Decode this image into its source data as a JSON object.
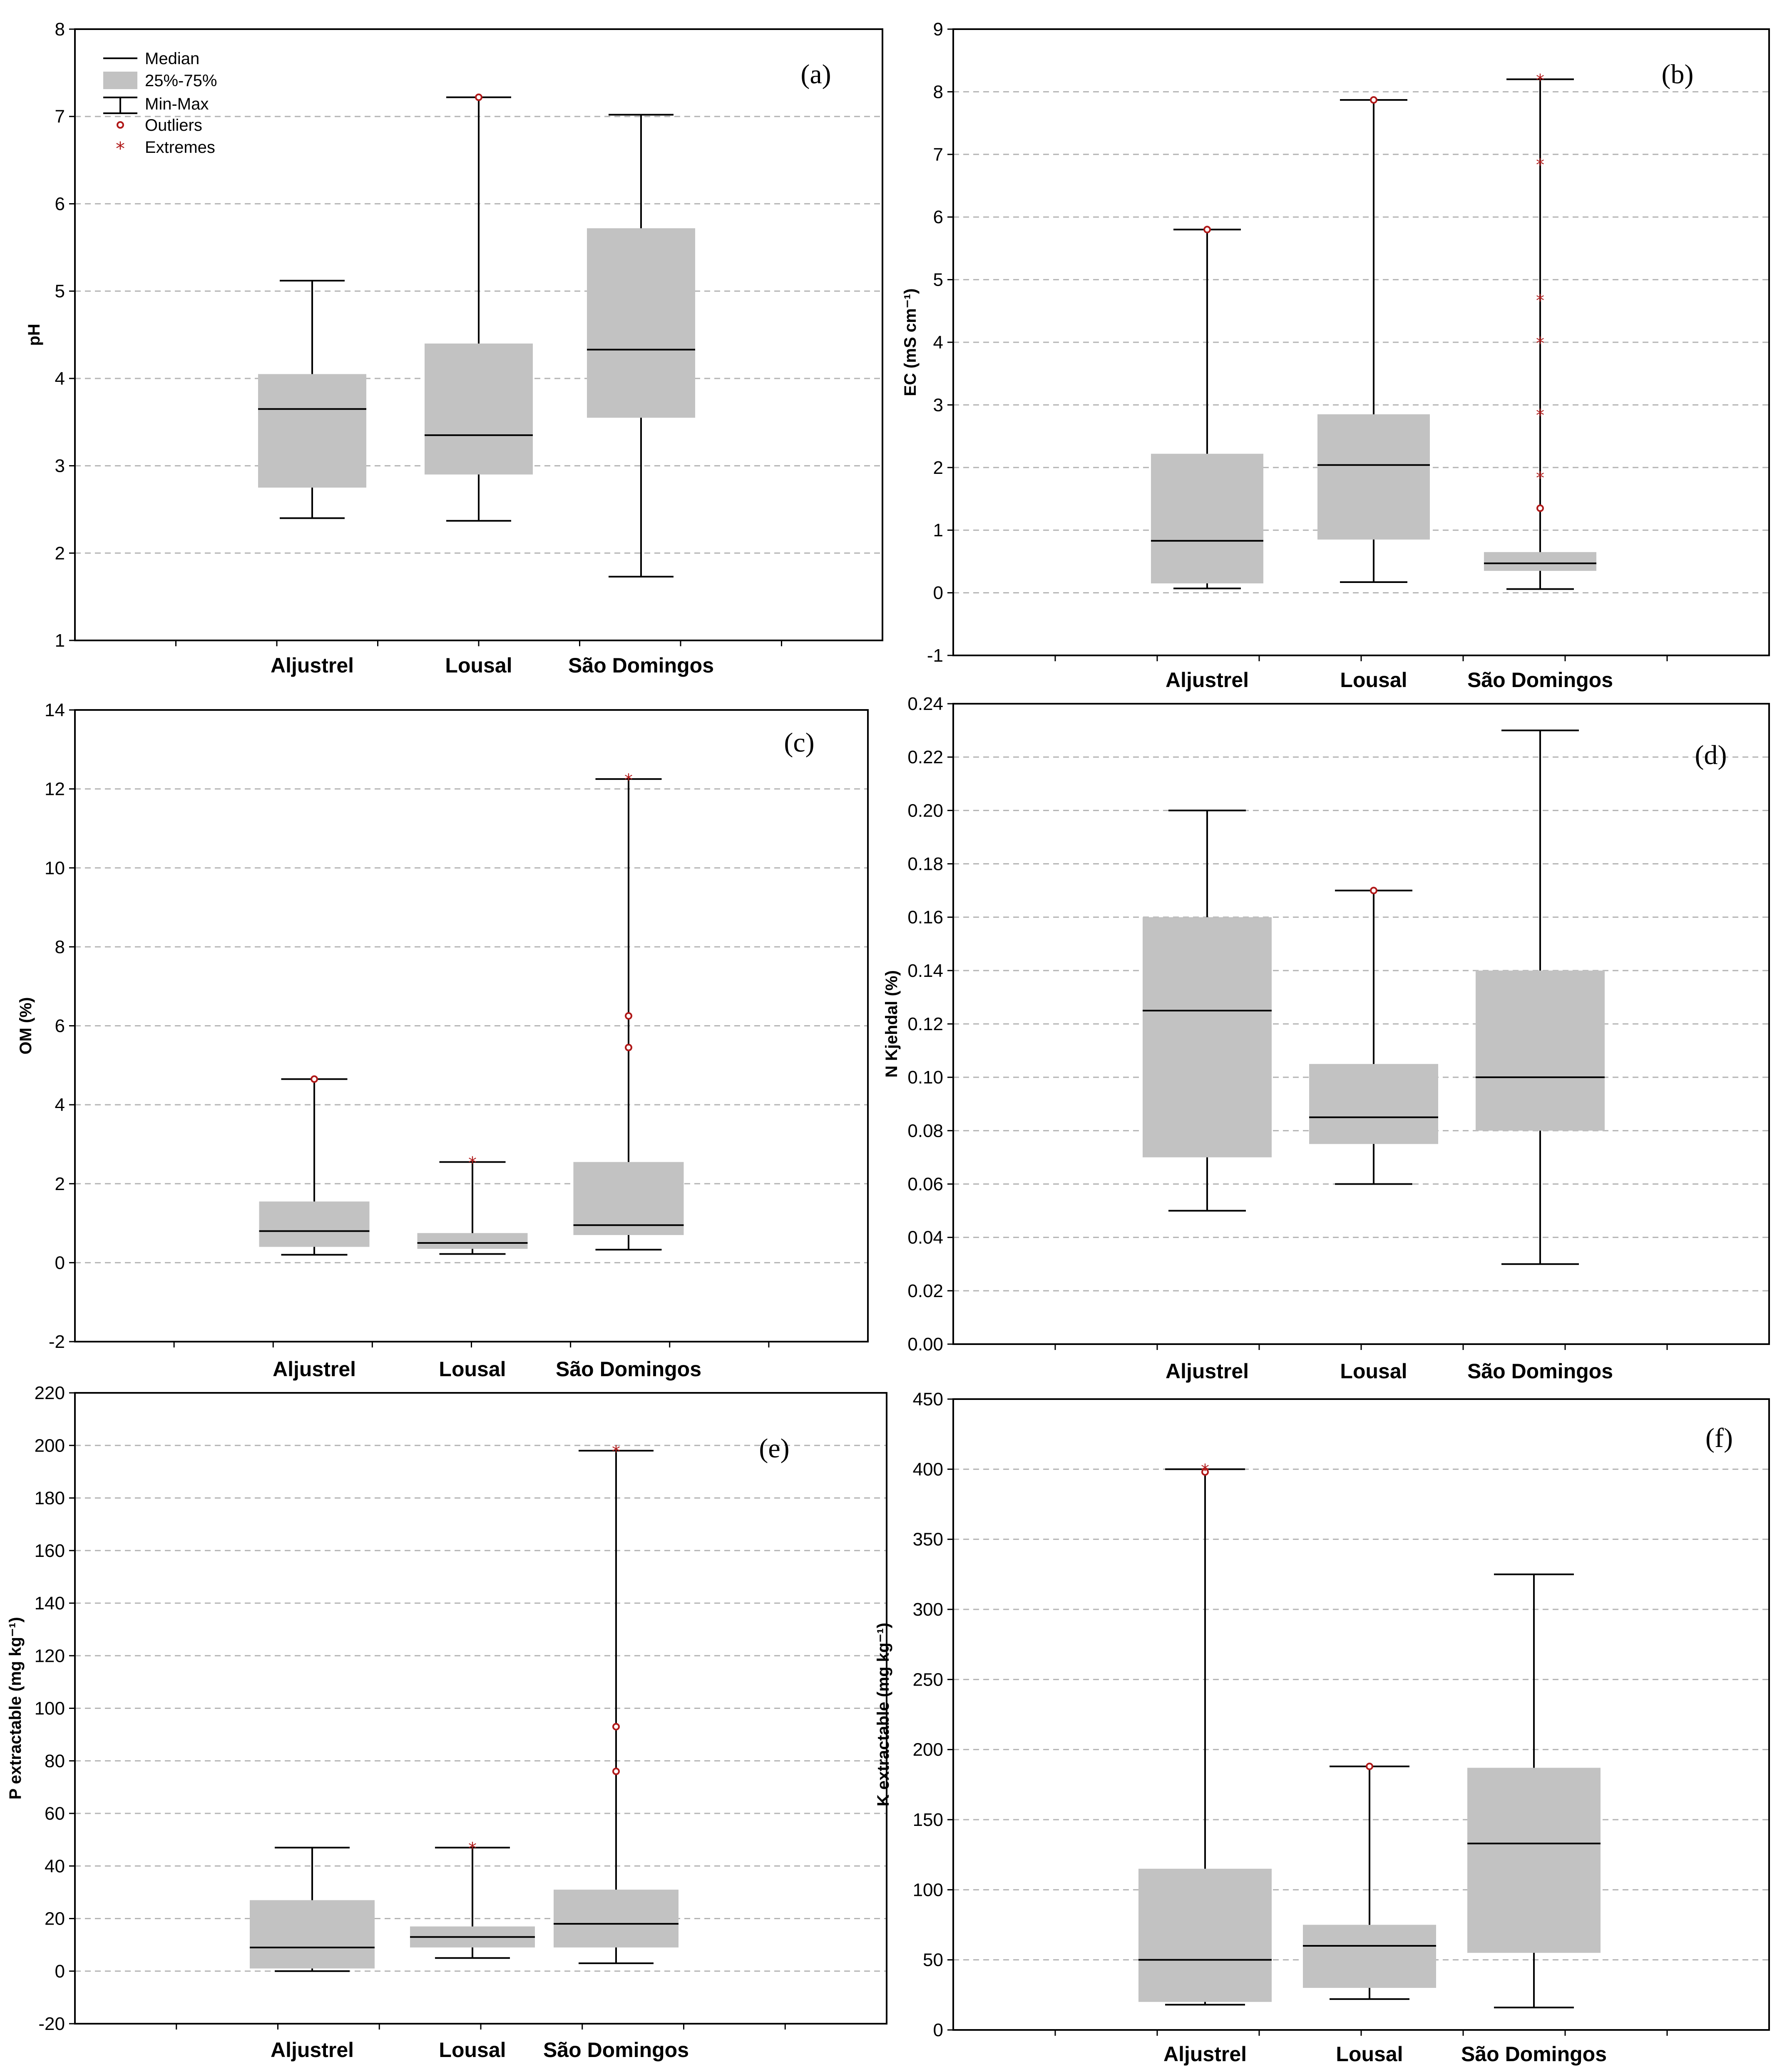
{
  "colors": {
    "box": "#c2c2c2",
    "grid": "#b4b4b4",
    "outlier": "#b01818",
    "line": "#000000"
  },
  "legend": {
    "median": "Median",
    "iqr": "25%-75%",
    "minmax": "Min-Max",
    "outliers": "Outliers",
    "extremes": "Extremes"
  },
  "chart_data": [
    {
      "type": "box",
      "label": "(a)",
      "ylabel": "pH",
      "ylim": [
        1,
        8
      ],
      "yticks": [
        1,
        2,
        3,
        4,
        5,
        6,
        7,
        8
      ],
      "decimals": 0,
      "categories": [
        "Aljustrel",
        "Lousal",
        "São Domingos"
      ],
      "boxes": [
        {
          "min": 2.4,
          "q1": 2.75,
          "median": 3.65,
          "q3": 4.05,
          "max": 5.12,
          "outliers": [],
          "extremes": []
        },
        {
          "min": 2.37,
          "q1": 2.9,
          "median": 3.35,
          "q3": 4.4,
          "max": 7.22,
          "outliers": [
            7.22
          ],
          "extremes": []
        },
        {
          "min": 1.73,
          "q1": 3.55,
          "median": 4.33,
          "q3": 5.72,
          "max": 7.02,
          "outliers": [],
          "extremes": []
        }
      ]
    },
    {
      "type": "box",
      "label": "(b)",
      "ylabel": "EC (mS cm⁻¹)",
      "ylim": [
        -1,
        9
      ],
      "yticks": [
        -1,
        0,
        1,
        2,
        3,
        4,
        5,
        6,
        7,
        8,
        9
      ],
      "decimals": 0,
      "categories": [
        "Aljustrel",
        "Lousal",
        "São Domingos"
      ],
      "boxes": [
        {
          "min": 0.07,
          "q1": 0.15,
          "median": 0.83,
          "q3": 2.22,
          "max": 5.8,
          "outliers": [
            5.8
          ],
          "extremes": []
        },
        {
          "min": 0.17,
          "q1": 0.85,
          "median": 2.04,
          "q3": 2.85,
          "max": 7.87,
          "outliers": [
            7.87
          ],
          "extremes": []
        },
        {
          "min": 0.06,
          "q1": 0.35,
          "median": 0.47,
          "q3": 0.65,
          "max": 8.2,
          "outliers": [
            1.35
          ],
          "extremes": [
            1.85,
            2.85,
            4.0,
            4.68,
            6.85,
            8.2
          ]
        }
      ]
    },
    {
      "type": "box",
      "label": "(c)",
      "ylabel": "OM (%)",
      "ylim": [
        -2,
        14
      ],
      "yticks": [
        -2,
        0,
        2,
        4,
        6,
        8,
        10,
        12,
        14
      ],
      "decimals": 0,
      "categories": [
        "Aljustrel",
        "Lousal",
        "São Domingos"
      ],
      "boxes": [
        {
          "min": 0.2,
          "q1": 0.4,
          "median": 0.8,
          "q3": 1.55,
          "max": 4.65,
          "outliers": [
            4.65
          ],
          "extremes": []
        },
        {
          "min": 0.22,
          "q1": 0.35,
          "median": 0.5,
          "q3": 0.75,
          "max": 2.55,
          "outliers": [],
          "extremes": [
            2.55
          ]
        },
        {
          "min": 0.33,
          "q1": 0.7,
          "median": 0.95,
          "q3": 2.55,
          "max": 12.25,
          "outliers": [
            5.45,
            6.25
          ],
          "extremes": [
            12.25
          ]
        }
      ]
    },
    {
      "type": "box",
      "label": "(d)",
      "ylabel": "N Kjehdal (%)",
      "ylim": [
        0,
        0.24
      ],
      "yticks": [
        0,
        0.02,
        0.04,
        0.06,
        0.08,
        0.1,
        0.12,
        0.14,
        0.16,
        0.18,
        0.2,
        0.22,
        0.24
      ],
      "decimals": 2,
      "categories": [
        "Aljustrel",
        "Lousal",
        "São Domingos"
      ],
      "boxes": [
        {
          "min": 0.05,
          "q1": 0.07,
          "median": 0.125,
          "q3": 0.16,
          "max": 0.2,
          "outliers": [],
          "extremes": []
        },
        {
          "min": 0.06,
          "q1": 0.075,
          "median": 0.085,
          "q3": 0.105,
          "max": 0.17,
          "outliers": [
            0.17
          ],
          "extremes": []
        },
        {
          "min": 0.03,
          "q1": 0.08,
          "median": 0.1,
          "q3": 0.14,
          "max": 0.23,
          "outliers": [],
          "extremes": []
        }
      ]
    },
    {
      "type": "box",
      "label": "(e)",
      "ylabel": "P extractable (mg kg⁻¹)",
      "ylim": [
        -20,
        220
      ],
      "yticks": [
        -20,
        0,
        20,
        40,
        60,
        80,
        100,
        120,
        140,
        160,
        180,
        200,
        220
      ],
      "decimals": 0,
      "categories": [
        "Aljustrel",
        "Lousal",
        "São Domingos"
      ],
      "boxes": [
        {
          "min": 0,
          "q1": 1,
          "median": 9,
          "q3": 27,
          "max": 47,
          "outliers": [],
          "extremes": []
        },
        {
          "min": 5,
          "q1": 9,
          "median": 13,
          "q3": 17,
          "max": 47,
          "outliers": [],
          "extremes": [
            47
          ]
        },
        {
          "min": 3,
          "q1": 9,
          "median": 18,
          "q3": 31,
          "max": 198,
          "outliers": [
            76,
            93
          ],
          "extremes": [
            198
          ]
        }
      ]
    },
    {
      "type": "box",
      "label": "(f)",
      "ylabel": "K extractable (mg kg⁻¹)",
      "ylim": [
        0,
        450
      ],
      "yticks": [
        0,
        50,
        100,
        150,
        200,
        250,
        300,
        350,
        400,
        450
      ],
      "decimals": 0,
      "categories": [
        "Aljustrel",
        "Lousal",
        "São Domingos"
      ],
      "boxes": [
        {
          "min": 18,
          "q1": 20,
          "median": 50,
          "q3": 115,
          "max": 400,
          "outliers": [
            398
          ],
          "extremes": [
            400
          ]
        },
        {
          "min": 22,
          "q1": 30,
          "median": 60,
          "q3": 75,
          "max": 188,
          "outliers": [
            188
          ],
          "extremes": []
        },
        {
          "min": 16,
          "q1": 55,
          "median": 133,
          "q3": 187,
          "max": 325,
          "outliers": [],
          "extremes": []
        }
      ]
    }
  ]
}
